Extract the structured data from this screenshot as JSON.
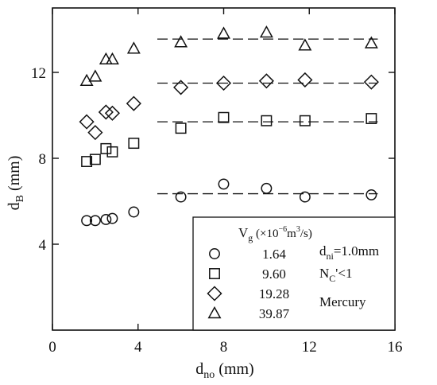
{
  "chart_data": {
    "type": "scatter",
    "xlabel": "d_no (mm)",
    "ylabel": "d_B (mm)",
    "xlim": [
      0,
      16
    ],
    "ylim": [
      0,
      15
    ],
    "xticks": [
      0,
      4,
      8,
      12,
      16
    ],
    "yticks": [
      4,
      8,
      12
    ],
    "legend": {
      "title": "V_g (×10⁻⁶m³/s)",
      "placement": "bottom-right",
      "notes": [
        "d_ni=1.0mm",
        "N_C'<1",
        "Mercury"
      ]
    },
    "series": [
      {
        "name": "1.64",
        "marker": "circle",
        "points": [
          [
            1.6,
            5.1
          ],
          [
            2.0,
            5.1
          ],
          [
            2.5,
            5.15
          ],
          [
            2.8,
            5.2
          ],
          [
            3.8,
            5.5
          ],
          [
            6.0,
            6.2
          ],
          [
            8.0,
            6.8
          ],
          [
            10.0,
            6.6
          ],
          [
            11.8,
            6.2
          ],
          [
            14.9,
            6.3
          ]
        ],
        "fit": {
          "x": [
            4.9,
            15.2
          ],
          "y": 6.35
        }
      },
      {
        "name": "9.60",
        "marker": "square",
        "points": [
          [
            1.6,
            7.85
          ],
          [
            2.0,
            7.95
          ],
          [
            2.5,
            8.45
          ],
          [
            2.8,
            8.3
          ],
          [
            3.8,
            8.7
          ],
          [
            6.0,
            9.4
          ],
          [
            8.0,
            9.9
          ],
          [
            10.0,
            9.75
          ],
          [
            11.8,
            9.75
          ],
          [
            14.9,
            9.85
          ]
        ],
        "fit": {
          "x": [
            4.9,
            15.2
          ],
          "y": 9.7
        }
      },
      {
        "name": "19.28",
        "marker": "diamond",
        "points": [
          [
            1.6,
            9.7
          ],
          [
            2.0,
            9.2
          ],
          [
            2.5,
            10.15
          ],
          [
            2.8,
            10.1
          ],
          [
            3.8,
            10.55
          ],
          [
            6.0,
            11.3
          ],
          [
            8.0,
            11.5
          ],
          [
            10.0,
            11.6
          ],
          [
            11.8,
            11.65
          ],
          [
            14.9,
            11.55
          ]
        ],
        "fit": {
          "x": [
            4.9,
            15.2
          ],
          "y": 11.5
        }
      },
      {
        "name": "39.87",
        "marker": "triangle",
        "points": [
          [
            1.6,
            11.6
          ],
          [
            2.0,
            11.8
          ],
          [
            2.5,
            12.6
          ],
          [
            2.8,
            12.6
          ],
          [
            3.8,
            13.1
          ],
          [
            6.0,
            13.4
          ],
          [
            8.0,
            13.8
          ],
          [
            10.0,
            13.85
          ],
          [
            11.8,
            13.25
          ],
          [
            14.9,
            13.35
          ]
        ],
        "fit": {
          "x": [
            4.9,
            15.2
          ],
          "y": 13.55
        }
      }
    ]
  }
}
